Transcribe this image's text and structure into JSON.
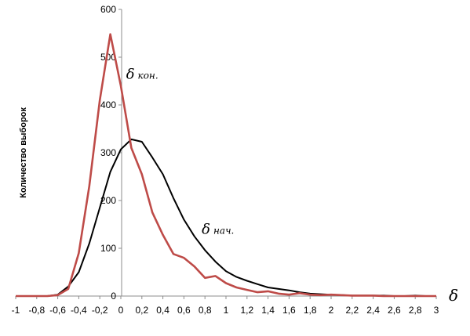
{
  "chart_data": {
    "type": "line",
    "title": "",
    "xlabel": "δ",
    "ylabel": "Количество выборок",
    "xlim": [
      -1,
      3
    ],
    "ylim": [
      0,
      600
    ],
    "grid": false,
    "legend": "none",
    "x_ticks": [
      "-1",
      "-0,8",
      "-0,6",
      "-0,4",
      "-0,2",
      "0",
      "0,2",
      "0,4",
      "0,6",
      "0,8",
      "1",
      "1,2",
      "1,4",
      "1,6",
      "1,8",
      "2",
      "2,2",
      "2,4",
      "2,6",
      "2,8",
      "3"
    ],
    "y_ticks": [
      "0",
      "100",
      "200",
      "300",
      "400",
      "500",
      "600"
    ],
    "series": [
      {
        "color": "#000000",
        "x": [
          -1,
          -0.9,
          -0.8,
          -0.7,
          -0.6,
          -0.5,
          -0.4,
          -0.3,
          -0.2,
          -0.1,
          0,
          0.1,
          0.2,
          0.3,
          0.4,
          0.5,
          0.6,
          0.7,
          0.8,
          0.9,
          1.0,
          1.1,
          1.2,
          1.3,
          1.4,
          1.5,
          1.6,
          1.7,
          1.8,
          1.9,
          2.0,
          2.1,
          2.2,
          2.3,
          2.4,
          2.5,
          2.6,
          2.7,
          2.8,
          2.9,
          3.0
        ],
        "values": [
          0,
          0,
          0,
          0,
          3,
          20,
          50,
          110,
          185,
          260,
          307,
          328,
          323,
          290,
          255,
          205,
          160,
          125,
          96,
          72,
          52,
          40,
          32,
          25,
          18,
          15,
          12,
          8,
          5,
          4,
          3,
          2,
          1,
          1,
          1,
          1,
          0,
          0,
          1,
          0,
          0
        ]
      },
      {
        "color": "#be4b48",
        "x": [
          -1,
          -0.9,
          -0.8,
          -0.7,
          -0.6,
          -0.5,
          -0.4,
          -0.3,
          -0.2,
          -0.1,
          0,
          0.1,
          0.2,
          0.3,
          0.4,
          0.5,
          0.6,
          0.7,
          0.8,
          0.9,
          1.0,
          1.1,
          1.2,
          1.3,
          1.4,
          1.5,
          1.6,
          1.7,
          1.8,
          1.9,
          2.0,
          2.1,
          2.2,
          2.3,
          2.4,
          2.5,
          2.6,
          2.7,
          2.8,
          2.9,
          3.0
        ],
        "values": [
          0,
          0,
          0,
          0,
          2,
          15,
          90,
          230,
          410,
          548,
          440,
          310,
          255,
          175,
          128,
          88,
          80,
          62,
          38,
          42,
          27,
          18,
          13,
          8,
          10,
          5,
          3,
          6,
          3,
          2,
          3,
          2,
          1,
          1,
          1,
          0,
          0,
          0,
          0,
          0,
          0
        ]
      }
    ],
    "annotations": [
      {
        "text_main": "δ",
        "text_sub": "кон.",
        "x": 0.05,
        "y": 455
      },
      {
        "text_main": "δ",
        "text_sub": "нач.",
        "x": 0.77,
        "y": 130
      }
    ]
  }
}
